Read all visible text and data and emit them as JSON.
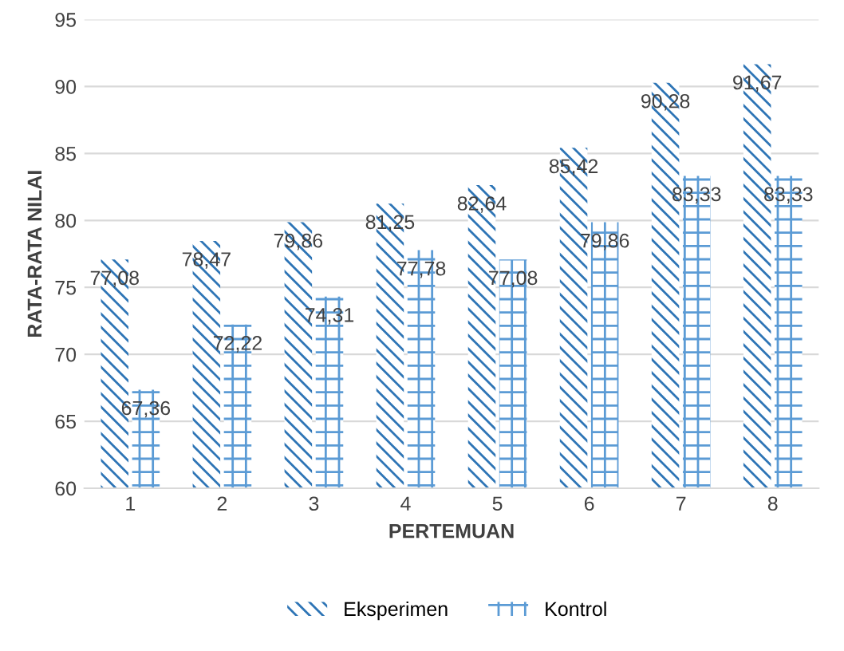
{
  "chart_data": {
    "type": "bar",
    "xlabel": "PERTEMUAN",
    "ylabel": "RATA-RATA NILAI",
    "categories": [
      "1",
      "2",
      "3",
      "4",
      "5",
      "6",
      "7",
      "8"
    ],
    "series": [
      {
        "name": "Eksperimen",
        "color": "#2e75b6",
        "values": [
          77.08,
          78.47,
          79.86,
          81.25,
          82.64,
          85.42,
          90.28,
          91.67
        ],
        "value_labels": [
          "77,08",
          "78,47",
          "79,86",
          "81,25",
          "82,64",
          "85,42",
          "90,28",
          "91,67"
        ]
      },
      {
        "name": "Kontrol",
        "color": "#5b9bd5",
        "values": [
          67.36,
          72.22,
          74.31,
          77.78,
          77.08,
          79.86,
          83.33,
          83.33
        ],
        "value_labels": [
          "67,36",
          "72,22",
          "74,31",
          "77,78",
          "77,08",
          "79,86",
          "83,33",
          "83,33"
        ]
      }
    ],
    "ylim": [
      60,
      95
    ],
    "yticks": [
      60,
      65,
      70,
      75,
      80,
      85,
      90,
      95
    ],
    "grid": "y",
    "legend": "bottom"
  }
}
